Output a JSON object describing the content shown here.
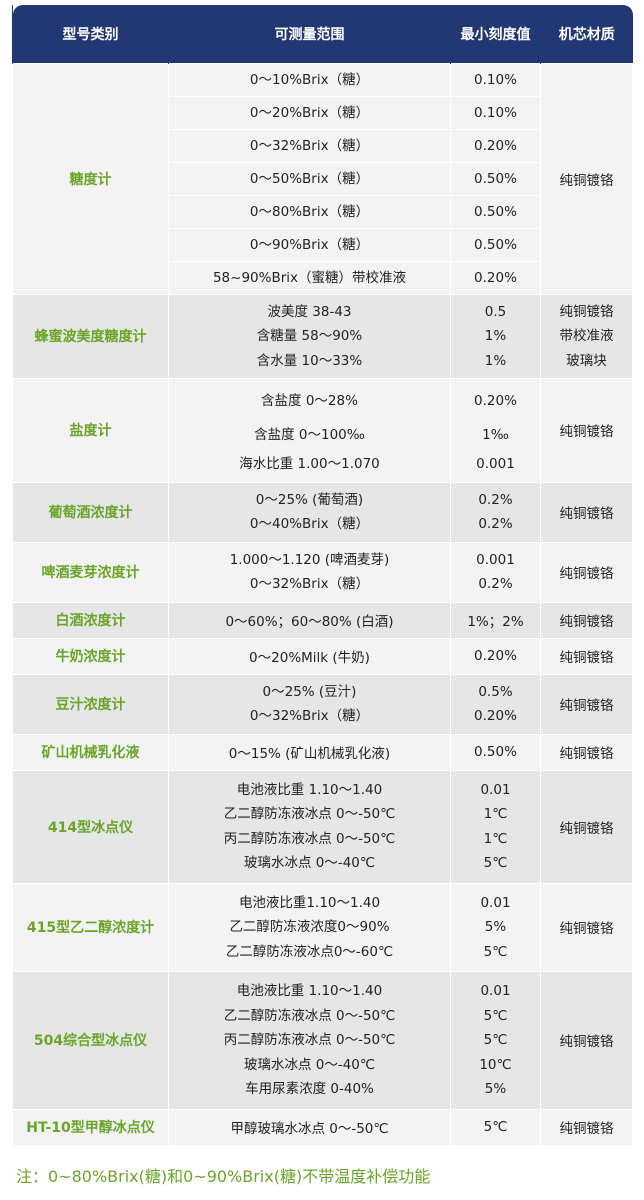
{
  "header": [
    "型号类别",
    "可测量范围",
    "最小刻度值",
    "机芯材质"
  ],
  "sugar": {
    "name": "糖度计",
    "ranges": [
      "0～10%Brix（糖）",
      "0～20%Brix（糖）",
      "0～32%Brix（糖）",
      "0～50%Brix（糖）",
      "0～80%Brix（糖）",
      "0～90%Brix（糖）",
      "58~90%Brix（蜜糖）带校准液"
    ],
    "scales": [
      "0.10%",
      "0.10%",
      "0.20%",
      "0.50%",
      "0.50%",
      "0.50%",
      "0.20%"
    ],
    "material": "纯铜镀铬"
  },
  "honey": {
    "name": "蜂蜜波美度糖度计",
    "ranges": [
      "波美度 38-43",
      "含糖量 58～90%",
      "含水量 10～33%"
    ],
    "scales": [
      "0.5",
      "1%",
      "1%"
    ],
    "material": [
      "纯铜镀铬",
      "带校准液",
      "玻璃块"
    ]
  },
  "salt": {
    "name": "盐度计",
    "ranges": [
      "含盐度 0～28%",
      "含盐度 0～100‰",
      "海水比重 1.00～1.070"
    ],
    "scales": [
      "0.20%",
      "1‰",
      "0.001"
    ],
    "material": "纯铜镀铬"
  },
  "wine": {
    "name": "葡萄酒浓度计",
    "ranges": [
      "0～25% (葡萄酒)",
      "0～40%Brix（糖）"
    ],
    "scales": [
      "0.2%",
      "0.2%"
    ],
    "material": "纯铜镀铬"
  },
  "beer": {
    "name": "啤酒麦芽浓度计",
    "ranges": [
      "1.000～1.120 (啤酒麦芽)",
      "0～32%Brix（糖）"
    ],
    "scales": [
      "0.001",
      "0.2%"
    ],
    "material": "纯铜镀铬"
  },
  "liquor": {
    "name": "白酒浓度计",
    "range": "0～60%；60～80% (白酒)",
    "scale": "1%；2%",
    "material": "纯铜镀铬"
  },
  "milk": {
    "name": "牛奶浓度计",
    "range": "0～20%Milk (牛奶)",
    "scale": "0.20%",
    "material": "纯铜镀铬"
  },
  "soy": {
    "name": "豆汁浓度计",
    "ranges": [
      "0～25% (豆汁)",
      "0～32%Brix（糖）"
    ],
    "scales": [
      "0.5%",
      "0.20%"
    ],
    "material": "纯铜镀铬"
  },
  "mining": {
    "name": "矿山机械乳化液",
    "range": "0～15% (矿山机械乳化液)",
    "scale": "0.50%",
    "material": "纯铜镀铬"
  },
  "m414": {
    "name": "414型冰点仪",
    "ranges": [
      "电池液比重 1.10～1.40",
      "乙二醇防冻液冰点 0～-50℃",
      "丙二醇防冻液冰点 0～-50℃",
      "玻璃水冰点 0～-40℃"
    ],
    "scales": [
      "0.01",
      "1℃",
      "1℃",
      "5℃"
    ],
    "material": "纯铜镀铬"
  },
  "m415": {
    "name": "415型乙二醇浓度计",
    "ranges": [
      "电池液比重1.10～1.40",
      "乙二醇防冻液浓度0～90%",
      "乙二醇防冻液冰点0～-60℃"
    ],
    "scales": [
      "0.01",
      "5%",
      "5℃"
    ],
    "material": "纯铜镀铬"
  },
  "m504": {
    "name": "504综合型冰点仪",
    "ranges": [
      "电池液比重 1.10～1.40",
      "乙二醇防冻液冰点 0～-50℃",
      "丙二醇防冻液冰点 0～-50℃",
      "玻璃水冰点 0～-40℃",
      "车用尿素浓度 0-40%"
    ],
    "scales": [
      "0.01",
      "5℃",
      "5℃",
      "10℃",
      "5%"
    ],
    "material": "纯铜镀铬"
  },
  "ht10": {
    "name": "HT-10型甲醇冰点仪",
    "range": "甲醇玻璃水冰点 0～-50℃",
    "scale": "5℃",
    "material": "纯铜镀铬"
  },
  "note": "注：0~80%Brix(糖)和0~90%Brix(糖)不带温度补偿功能"
}
